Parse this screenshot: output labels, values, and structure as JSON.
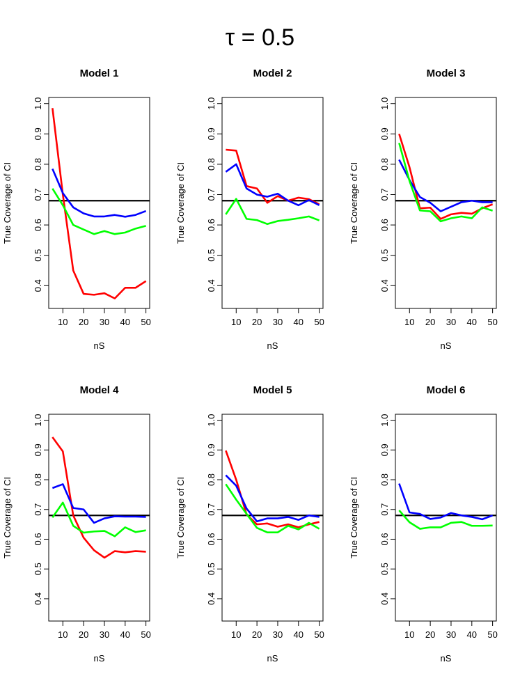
{
  "figure": {
    "title": "τ = 0.5"
  },
  "colors": {
    "red": "#ff0000",
    "blue": "#0000ff",
    "green": "#00ff00",
    "reference": "#000000"
  },
  "chart_data": [
    {
      "type": "line",
      "title": "Model 1",
      "xlabel": "nS",
      "ylabel": "True Coverage of CI",
      "x": [
        5,
        10,
        15,
        20,
        25,
        30,
        35,
        40,
        45,
        50
      ],
      "xticks": [
        10,
        20,
        30,
        40,
        50
      ],
      "yticks": [
        "0.4",
        "0.5",
        "0.6",
        "0.7",
        "0.8",
        "0.9",
        "1.0"
      ],
      "xlim": [
        3.2,
        51.8
      ],
      "ylim": [
        0.325,
        1.02
      ],
      "reference_line": 0.68,
      "series": [
        {
          "color": "red",
          "values": [
            0.985,
            0.7,
            0.45,
            0.373,
            0.37,
            0.375,
            0.358,
            0.393,
            0.393,
            0.415
          ]
        },
        {
          "color": "blue",
          "values": [
            0.785,
            0.705,
            0.658,
            0.638,
            0.628,
            0.628,
            0.633,
            0.627,
            0.633,
            0.646
          ]
        },
        {
          "color": "green",
          "values": [
            0.72,
            0.665,
            0.6,
            0.585,
            0.57,
            0.58,
            0.57,
            0.575,
            0.588,
            0.597
          ]
        }
      ]
    },
    {
      "type": "line",
      "title": "Model 2",
      "xlabel": "nS",
      "ylabel": "True Coverage of CI",
      "x": [
        5,
        10,
        15,
        20,
        25,
        30,
        35,
        40,
        45,
        50
      ],
      "xticks": [
        10,
        20,
        30,
        40,
        50
      ],
      "yticks": [
        "0.4",
        "0.5",
        "0.6",
        "0.7",
        "0.8",
        "0.9",
        "1.0"
      ],
      "xlim": [
        3.2,
        51.8
      ],
      "ylim": [
        0.325,
        1.02
      ],
      "reference_line": 0.68,
      "series": [
        {
          "color": "red",
          "values": [
            0.848,
            0.845,
            0.728,
            0.72,
            0.673,
            0.695,
            0.68,
            0.69,
            0.685,
            0.668
          ]
        },
        {
          "color": "blue",
          "values": [
            0.775,
            0.8,
            0.72,
            0.7,
            0.693,
            0.703,
            0.68,
            0.665,
            0.682,
            0.665
          ]
        },
        {
          "color": "green",
          "values": [
            0.635,
            0.686,
            0.62,
            0.616,
            0.603,
            0.613,
            0.617,
            0.622,
            0.628,
            0.615
          ]
        }
      ]
    },
    {
      "type": "line",
      "title": "Model 3",
      "xlabel": "nS",
      "ylabel": "True Coverage of CI",
      "x": [
        5,
        10,
        15,
        20,
        25,
        30,
        35,
        40,
        45,
        50
      ],
      "xticks": [
        10,
        20,
        30,
        40,
        50
      ],
      "yticks": [
        "0.4",
        "0.5",
        "0.6",
        "0.7",
        "0.8",
        "0.9",
        "1.0"
      ],
      "xlim": [
        3.2,
        51.8
      ],
      "ylim": [
        0.325,
        1.02
      ],
      "reference_line": 0.68,
      "series": [
        {
          "color": "red",
          "values": [
            0.9,
            0.79,
            0.655,
            0.657,
            0.62,
            0.635,
            0.64,
            0.637,
            0.655,
            0.668
          ]
        },
        {
          "color": "blue",
          "values": [
            0.815,
            0.748,
            0.692,
            0.673,
            0.645,
            0.66,
            0.675,
            0.68,
            0.675,
            0.675
          ]
        },
        {
          "color": "green",
          "values": [
            0.87,
            0.745,
            0.648,
            0.645,
            0.612,
            0.622,
            0.628,
            0.622,
            0.658,
            0.647
          ]
        }
      ]
    },
    {
      "type": "line",
      "title": "Model 4",
      "xlabel": "nS",
      "ylabel": "True Coverage of CI",
      "x": [
        5,
        10,
        15,
        20,
        25,
        30,
        35,
        40,
        45,
        50
      ],
      "xticks": [
        10,
        20,
        30,
        40,
        50
      ],
      "yticks": [
        "0.4",
        "0.5",
        "0.6",
        "0.7",
        "0.8",
        "0.9",
        "1.0"
      ],
      "xlim": [
        3.2,
        51.8
      ],
      "ylim": [
        0.325,
        1.02
      ],
      "reference_line": 0.68,
      "series": [
        {
          "color": "red",
          "values": [
            0.943,
            0.895,
            0.68,
            0.605,
            0.563,
            0.538,
            0.56,
            0.556,
            0.56,
            0.558
          ]
        },
        {
          "color": "blue",
          "values": [
            0.772,
            0.785,
            0.705,
            0.7,
            0.655,
            0.67,
            0.677,
            0.676,
            0.676,
            0.675
          ]
        },
        {
          "color": "green",
          "values": [
            0.673,
            0.723,
            0.645,
            0.622,
            0.626,
            0.628,
            0.61,
            0.64,
            0.624,
            0.63
          ]
        }
      ]
    },
    {
      "type": "line",
      "title": "Model 5",
      "xlabel": "nS",
      "ylabel": "True Coverage of CI",
      "x": [
        5,
        10,
        15,
        20,
        25,
        30,
        35,
        40,
        45,
        50
      ],
      "xticks": [
        10,
        20,
        30,
        40,
        50
      ],
      "yticks": [
        "0.4",
        "0.5",
        "0.6",
        "0.7",
        "0.8",
        "0.9",
        "1.0"
      ],
      "xlim": [
        3.2,
        51.8
      ],
      "ylim": [
        0.325,
        1.02
      ],
      "reference_line": 0.68,
      "series": [
        {
          "color": "red",
          "values": [
            0.898,
            0.8,
            0.683,
            0.65,
            0.653,
            0.642,
            0.65,
            0.64,
            0.65,
            0.658
          ]
        },
        {
          "color": "blue",
          "values": [
            0.815,
            0.78,
            0.703,
            0.66,
            0.67,
            0.67,
            0.675,
            0.665,
            0.68,
            0.675
          ]
        },
        {
          "color": "green",
          "values": [
            0.785,
            0.733,
            0.685,
            0.638,
            0.623,
            0.623,
            0.645,
            0.633,
            0.655,
            0.635
          ]
        }
      ]
    },
    {
      "type": "line",
      "title": "Model 6",
      "xlabel": "nS",
      "ylabel": "True Coverage of CI",
      "x": [
        5,
        10,
        15,
        20,
        25,
        30,
        35,
        40,
        45,
        50
      ],
      "xticks": [
        10,
        20,
        30,
        40,
        50
      ],
      "yticks": [
        "0.4",
        "0.5",
        "0.6",
        "0.7",
        "0.8",
        "0.9",
        "1.0"
      ],
      "xlim": [
        3.2,
        51.8
      ],
      "ylim": [
        0.325,
        1.02
      ],
      "reference_line": 0.68,
      "series": [
        {
          "color": "blue",
          "values": [
            0.787,
            0.69,
            0.685,
            0.668,
            0.673,
            0.688,
            0.68,
            0.675,
            0.667,
            0.68
          ]
        },
        {
          "color": "green",
          "values": [
            0.697,
            0.657,
            0.635,
            0.64,
            0.64,
            0.655,
            0.658,
            0.645,
            0.645,
            0.646
          ]
        }
      ]
    }
  ]
}
